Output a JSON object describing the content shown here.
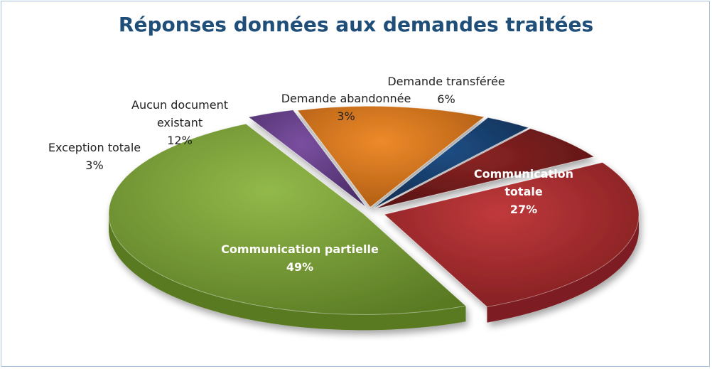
{
  "chart_data": {
    "type": "pie",
    "title": "Réponses données aux demandes traitées",
    "slices": [
      {
        "label": [
          "Communication",
          "totale"
        ],
        "value": 27,
        "value_label": "27%",
        "color": "#c0393b",
        "side": "#7d1d20",
        "label_inside": true
      },
      {
        "label": [
          "Communication partielle"
        ],
        "value": 49,
        "value_label": "49%",
        "color": "#92b94a",
        "side": "#5a7a24",
        "label_inside": true
      },
      {
        "label": [
          "Exception totale"
        ],
        "value": 3,
        "value_label": "3%",
        "color": "#7a4fa0",
        "side": "#4a2c66",
        "label_inside": false
      },
      {
        "label": [
          "Aucun document",
          "existant"
        ],
        "value": 12,
        "value_label": "12%",
        "color": "#ee8a2a",
        "side": "#a85812",
        "label_inside": false
      },
      {
        "label": [
          "Demande abandonnée"
        ],
        "value": 3,
        "value_label": "3%",
        "color": "#1f4e85",
        "side": "#0f2c4f",
        "label_inside": false
      },
      {
        "label": [
          "Demande transférée"
        ],
        "value": 6,
        "value_label": "6%",
        "color": "#8a2424",
        "side": "#561212",
        "label_inside": false
      }
    ]
  }
}
